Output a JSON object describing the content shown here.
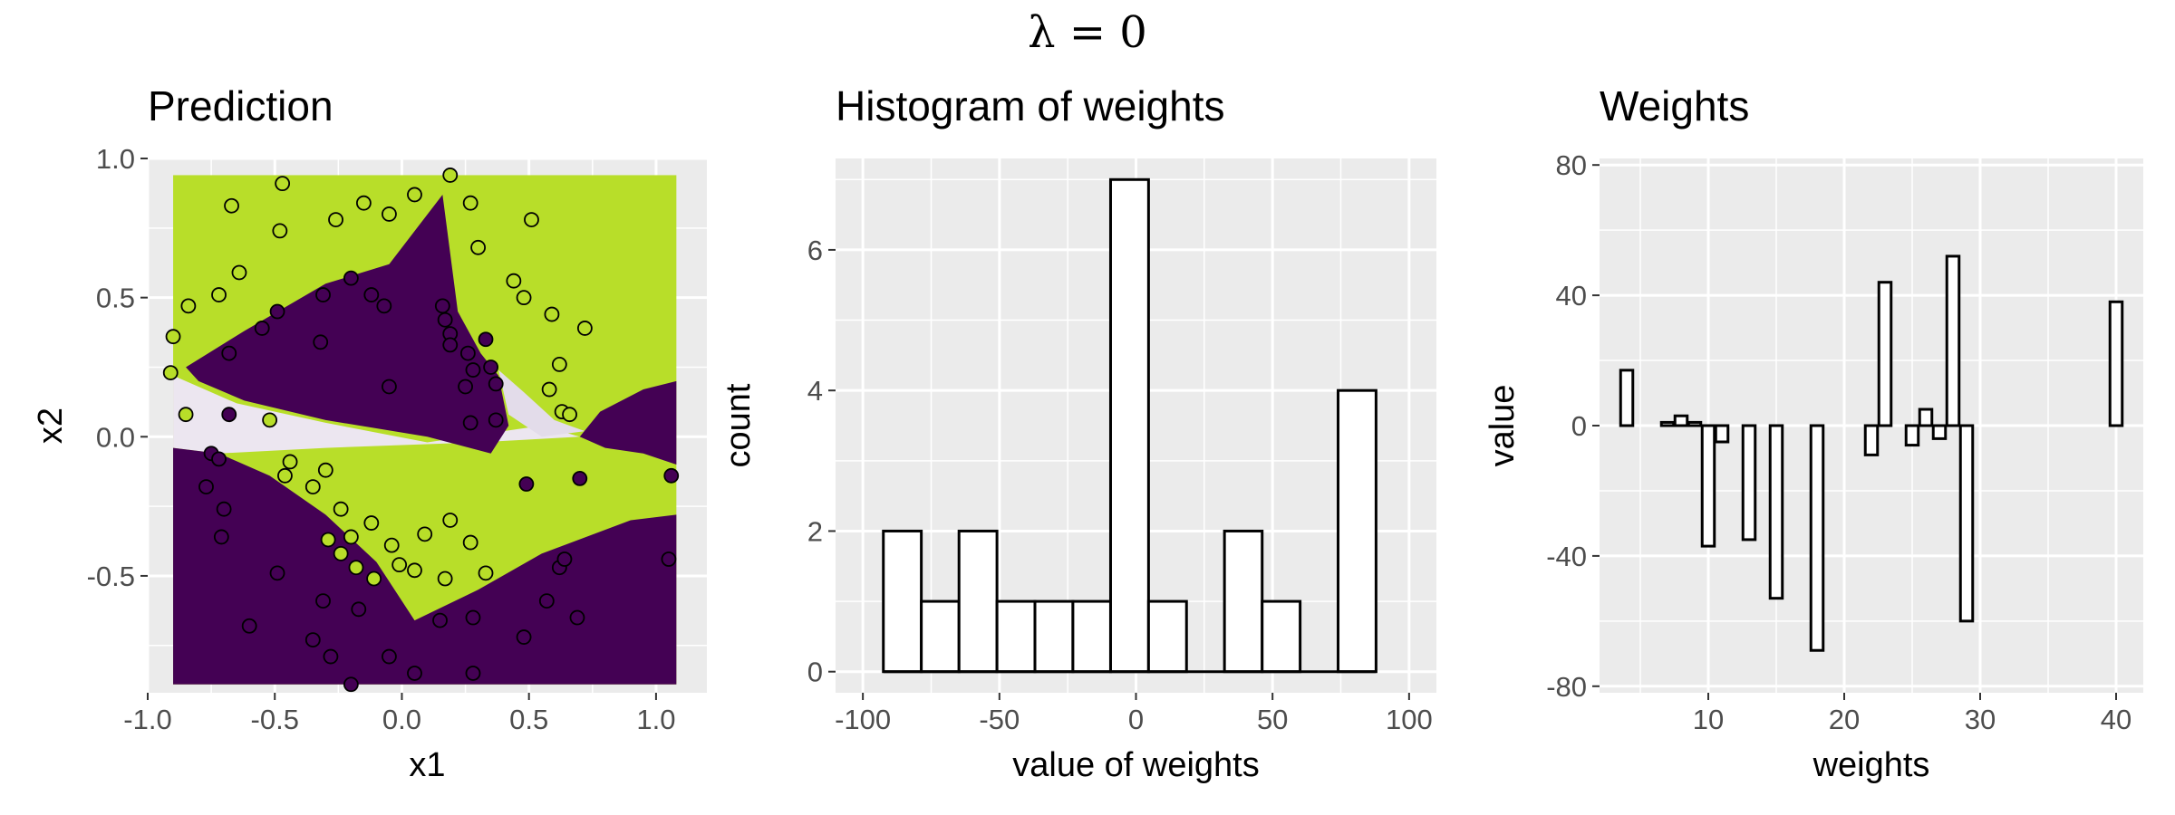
{
  "supertitle": "λ = 0",
  "chart_data": [
    {
      "type": "scatter",
      "title": "Prediction",
      "xlabel": "x1",
      "ylabel": "x2",
      "xlim": [
        -1.0,
        1.2
      ],
      "ylim": [
        -0.92,
        1.0
      ],
      "xticks": [
        "-1.0",
        "-0.5",
        "0.0",
        "0.5",
        "1.0"
      ],
      "yticks": [
        "-0.5",
        "0.0",
        "0.5",
        "1.0"
      ],
      "background_note": "predicted class surface: green and purple regions with white transition band",
      "colors": {
        "class_a": "#b8de29",
        "class_b": "#440154",
        "border": "#000000"
      },
      "points": [
        {
          "x": -0.9,
          "y": 0.36,
          "c": "a"
        },
        {
          "x": -0.91,
          "y": 0.23,
          "c": "a"
        },
        {
          "x": -0.84,
          "y": 0.47,
          "c": "a"
        },
        {
          "x": -0.72,
          "y": 0.51,
          "c": "a"
        },
        {
          "x": -0.64,
          "y": 0.59,
          "c": "a"
        },
        {
          "x": -0.67,
          "y": 0.83,
          "c": "a"
        },
        {
          "x": -0.47,
          "y": 0.91,
          "c": "a"
        },
        {
          "x": -0.48,
          "y": 0.74,
          "c": "a"
        },
        {
          "x": -0.26,
          "y": 0.78,
          "c": "a"
        },
        {
          "x": -0.15,
          "y": 0.84,
          "c": "a"
        },
        {
          "x": -0.05,
          "y": 0.8,
          "c": "a"
        },
        {
          "x": 0.05,
          "y": 0.87,
          "c": "a"
        },
        {
          "x": 0.19,
          "y": 0.94,
          "c": "a"
        },
        {
          "x": 0.27,
          "y": 0.84,
          "c": "a"
        },
        {
          "x": 0.3,
          "y": 0.68,
          "c": "a"
        },
        {
          "x": 0.44,
          "y": 0.56,
          "c": "a"
        },
        {
          "x": 0.51,
          "y": 0.78,
          "c": "a"
        },
        {
          "x": 0.48,
          "y": 0.5,
          "c": "a"
        },
        {
          "x": 0.59,
          "y": 0.44,
          "c": "a"
        },
        {
          "x": 0.72,
          "y": 0.39,
          "c": "a"
        },
        {
          "x": 0.62,
          "y": 0.26,
          "c": "a"
        },
        {
          "x": 0.58,
          "y": 0.17,
          "c": "a"
        },
        {
          "x": 0.63,
          "y": 0.09,
          "c": "a"
        },
        {
          "x": 0.66,
          "y": 0.08,
          "c": "a"
        },
        {
          "x": -0.85,
          "y": 0.08,
          "c": "a"
        },
        {
          "x": -0.52,
          "y": 0.06,
          "c": "a"
        },
        {
          "x": -0.44,
          "y": -0.09,
          "c": "a"
        },
        {
          "x": -0.46,
          "y": -0.14,
          "c": "a"
        },
        {
          "x": -0.3,
          "y": -0.12,
          "c": "a"
        },
        {
          "x": -0.35,
          "y": -0.18,
          "c": "a"
        },
        {
          "x": -0.24,
          "y": -0.26,
          "c": "a"
        },
        {
          "x": -0.2,
          "y": -0.36,
          "c": "a"
        },
        {
          "x": -0.12,
          "y": -0.31,
          "c": "a"
        },
        {
          "x": -0.04,
          "y": -0.39,
          "c": "a"
        },
        {
          "x": 0.09,
          "y": -0.35,
          "c": "a"
        },
        {
          "x": 0.19,
          "y": -0.3,
          "c": "a"
        },
        {
          "x": 0.27,
          "y": -0.38,
          "c": "a"
        },
        {
          "x": 0.33,
          "y": -0.49,
          "c": "a"
        },
        {
          "x": -0.29,
          "y": -0.37,
          "c": "a"
        },
        {
          "x": -0.24,
          "y": -0.42,
          "c": "a"
        },
        {
          "x": -0.11,
          "y": -0.51,
          "c": "a"
        },
        {
          "x": -0.01,
          "y": -0.46,
          "c": "a"
        },
        {
          "x": 0.05,
          "y": -0.48,
          "c": "a"
        },
        {
          "x": 0.17,
          "y": -0.51,
          "c": "a"
        },
        {
          "x": -0.18,
          "y": -0.47,
          "c": "a"
        },
        {
          "x": -0.68,
          "y": 0.08,
          "c": "b"
        },
        {
          "x": -0.68,
          "y": 0.3,
          "c": "b"
        },
        {
          "x": -0.55,
          "y": 0.39,
          "c": "b"
        },
        {
          "x": -0.49,
          "y": 0.45,
          "c": "b"
        },
        {
          "x": -0.32,
          "y": 0.34,
          "c": "b"
        },
        {
          "x": -0.31,
          "y": 0.51,
          "c": "b"
        },
        {
          "x": -0.2,
          "y": 0.57,
          "c": "b"
        },
        {
          "x": -0.12,
          "y": 0.51,
          "c": "b"
        },
        {
          "x": -0.07,
          "y": 0.47,
          "c": "b"
        },
        {
          "x": 0.16,
          "y": 0.47,
          "c": "b"
        },
        {
          "x": 0.17,
          "y": 0.42,
          "c": "b"
        },
        {
          "x": 0.19,
          "y": 0.37,
          "c": "b"
        },
        {
          "x": 0.19,
          "y": 0.33,
          "c": "b"
        },
        {
          "x": 0.26,
          "y": 0.3,
          "c": "b"
        },
        {
          "x": 0.33,
          "y": 0.35,
          "c": "b"
        },
        {
          "x": 0.35,
          "y": 0.25,
          "c": "b"
        },
        {
          "x": 0.28,
          "y": 0.24,
          "c": "b"
        },
        {
          "x": 0.25,
          "y": 0.18,
          "c": "b"
        },
        {
          "x": 0.37,
          "y": 0.19,
          "c": "b"
        },
        {
          "x": -0.05,
          "y": 0.18,
          "c": "b"
        },
        {
          "x": 0.27,
          "y": 0.05,
          "c": "b"
        },
        {
          "x": 0.37,
          "y": 0.06,
          "c": "b"
        },
        {
          "x": -0.75,
          "y": -0.06,
          "c": "b"
        },
        {
          "x": -0.72,
          "y": -0.08,
          "c": "b"
        },
        {
          "x": -0.77,
          "y": -0.18,
          "c": "b"
        },
        {
          "x": -0.7,
          "y": -0.26,
          "c": "b"
        },
        {
          "x": -0.71,
          "y": -0.36,
          "c": "b"
        },
        {
          "x": -0.49,
          "y": -0.49,
          "c": "b"
        },
        {
          "x": -0.6,
          "y": -0.68,
          "c": "b"
        },
        {
          "x": -0.35,
          "y": -0.73,
          "c": "b"
        },
        {
          "x": -0.28,
          "y": -0.79,
          "c": "b"
        },
        {
          "x": -0.05,
          "y": -0.79,
          "c": "b"
        },
        {
          "x": 0.05,
          "y": -0.85,
          "c": "b"
        },
        {
          "x": 0.15,
          "y": -0.66,
          "c": "b"
        },
        {
          "x": 0.28,
          "y": -0.65,
          "c": "b"
        },
        {
          "x": 0.28,
          "y": -0.85,
          "c": "b"
        },
        {
          "x": 0.48,
          "y": -0.72,
          "c": "b"
        },
        {
          "x": 0.57,
          "y": -0.59,
          "c": "b"
        },
        {
          "x": 0.62,
          "y": -0.47,
          "c": "b"
        },
        {
          "x": 0.69,
          "y": -0.65,
          "c": "b"
        },
        {
          "x": 0.49,
          "y": -0.17,
          "c": "b"
        },
        {
          "x": 0.7,
          "y": -0.15,
          "c": "b"
        },
        {
          "x": 1.06,
          "y": -0.14,
          "c": "b"
        },
        {
          "x": 1.05,
          "y": -0.44,
          "c": "b"
        },
        {
          "x": -0.2,
          "y": -0.89,
          "c": "b"
        },
        {
          "x": -0.31,
          "y": -0.59,
          "c": "b"
        },
        {
          "x": -0.17,
          "y": -0.62,
          "c": "b"
        },
        {
          "x": 0.64,
          "y": -0.44,
          "c": "b"
        }
      ]
    },
    {
      "type": "bar",
      "title": "Histogram of weights",
      "xlabel": "value of weights",
      "ylabel": "count",
      "xlim": [
        -110,
        110
      ],
      "ylim": [
        -0.3,
        7.3
      ],
      "xticks": [
        "-100",
        "-50",
        "0",
        "50",
        "100"
      ],
      "yticks": [
        "0",
        "2",
        "4",
        "6"
      ],
      "bins": [
        {
          "x0": -92.5,
          "x1": -78.6,
          "count": 2
        },
        {
          "x0": -78.6,
          "x1": -64.8,
          "count": 1
        },
        {
          "x0": -64.8,
          "x1": -50.9,
          "count": 2
        },
        {
          "x0": -50.9,
          "x1": -37.0,
          "count": 1
        },
        {
          "x0": -37.0,
          "x1": -23.1,
          "count": 1
        },
        {
          "x0": -23.1,
          "x1": -9.3,
          "count": 1
        },
        {
          "x0": -9.3,
          "x1": 4.6,
          "count": 7
        },
        {
          "x0": 4.6,
          "x1": 18.5,
          "count": 1
        },
        {
          "x0": 18.5,
          "x1": 32.4,
          "count": 0
        },
        {
          "x0": 32.4,
          "x1": 46.2,
          "count": 2
        },
        {
          "x0": 46.2,
          "x1": 60.1,
          "count": 1
        },
        {
          "x0": 60.1,
          "x1": 74.0,
          "count": 0
        },
        {
          "x0": 74.0,
          "x1": 87.9,
          "count": 4
        }
      ]
    },
    {
      "type": "bar",
      "title": "Weights",
      "xlabel": "weights",
      "ylabel": "value",
      "xlim": [
        2,
        42
      ],
      "ylim": [
        -82,
        82
      ],
      "xticks": [
        "10",
        "20",
        "30",
        "40"
      ],
      "yticks": [
        "-80",
        "-40",
        "0",
        "40",
        "80"
      ],
      "bars": [
        {
          "x": 4,
          "value": 17
        },
        {
          "x": 7,
          "value": 1
        },
        {
          "x": 8,
          "value": 3
        },
        {
          "x": 9,
          "value": 1
        },
        {
          "x": 10,
          "value": -37
        },
        {
          "x": 11,
          "value": -5
        },
        {
          "x": 13,
          "value": -35
        },
        {
          "x": 15,
          "value": -53
        },
        {
          "x": 18,
          "value": -69
        },
        {
          "x": 22,
          "value": -9
        },
        {
          "x": 23,
          "value": 44
        },
        {
          "x": 25,
          "value": -6
        },
        {
          "x": 26,
          "value": 5
        },
        {
          "x": 27,
          "value": -4
        },
        {
          "x": 28,
          "value": 52
        },
        {
          "x": 29,
          "value": -60
        },
        {
          "x": 40,
          "value": 38
        }
      ]
    }
  ]
}
